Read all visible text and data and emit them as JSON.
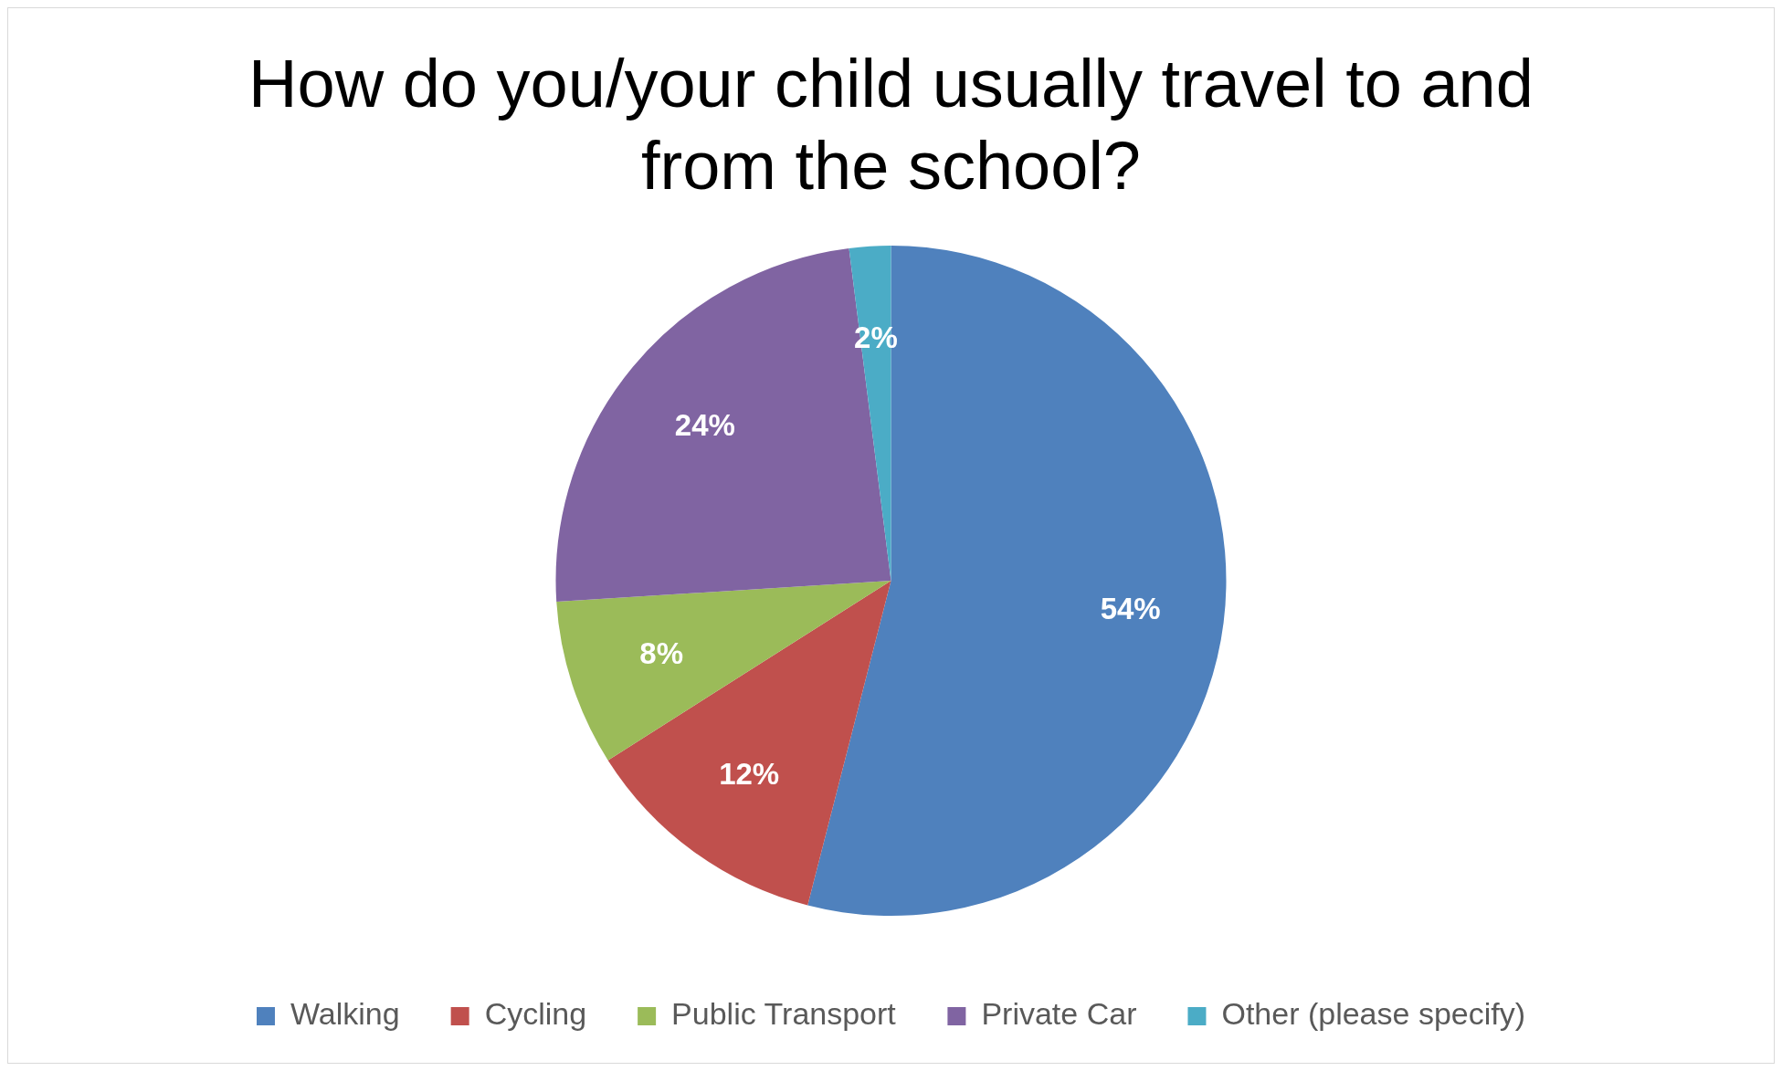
{
  "chart_data": {
    "type": "pie",
    "title": "How do you/your child usually travel to and from the school?",
    "categories": [
      "Walking",
      "Cycling",
      "Public Transport",
      "Private Car",
      "Other (please specify)"
    ],
    "values": [
      54,
      12,
      8,
      24,
      2
    ],
    "colors": [
      "#4f81bd",
      "#c0504d",
      "#9bbb59",
      "#8064a2",
      "#4bacc6"
    ],
    "value_labels": [
      "54%",
      "12%",
      "8%",
      "24%",
      "2%"
    ],
    "legend": "bottom"
  }
}
